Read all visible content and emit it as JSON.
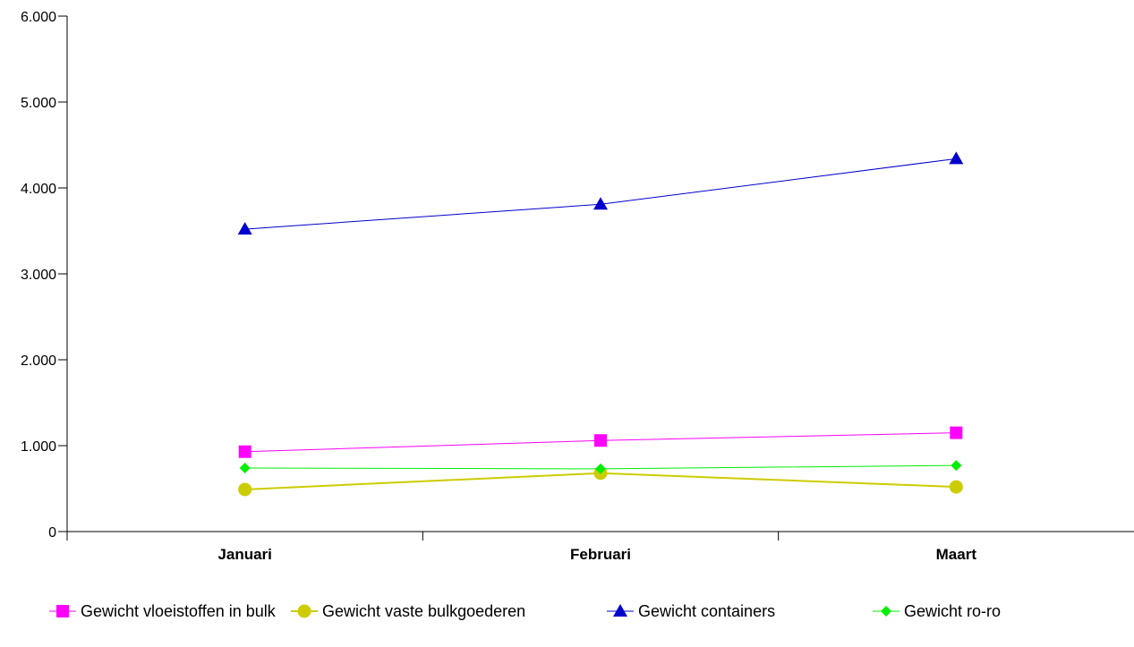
{
  "chart_data": {
    "type": "line",
    "title": "",
    "xlabel": "",
    "ylabel": "",
    "categories": [
      "Januari",
      "Februari",
      "Maart"
    ],
    "ylim": [
      0,
      6000
    ],
    "yticks": [
      0,
      1000,
      2000,
      3000,
      4000,
      5000,
      6000
    ],
    "ytick_labels": [
      "0",
      "1.000",
      "2.000",
      "3.000",
      "4.000",
      "5.000",
      "6.000"
    ],
    "grid": false,
    "legend_position": "bottom",
    "series": [
      {
        "name": "Gewicht vloeistoffen in bulk",
        "values": [
          930,
          1060,
          1150
        ],
        "color": "#ff00ff",
        "marker": "square"
      },
      {
        "name": "Gewicht vaste bulkgoederen",
        "values": [
          490,
          680,
          520
        ],
        "color": "#cccc00",
        "marker": "circle"
      },
      {
        "name": "Gewicht containers",
        "values": [
          3520,
          3810,
          4340
        ],
        "color": "#0000cc",
        "marker": "triangle"
      },
      {
        "name": "Gewicht ro-ro",
        "values": [
          740,
          730,
          770
        ],
        "color": "#00ee00",
        "marker": "diamond"
      }
    ]
  }
}
